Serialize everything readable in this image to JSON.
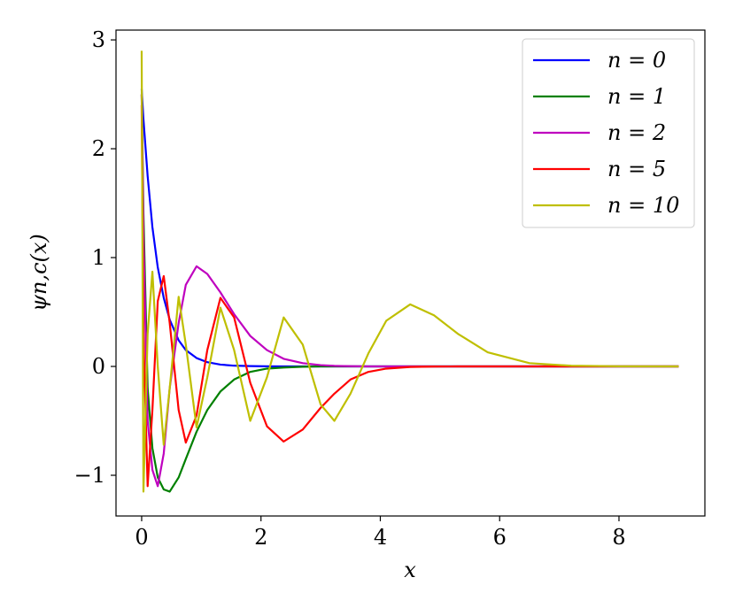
{
  "chart_data": {
    "type": "line",
    "xlabel": "x",
    "ylabel": "ψn,c(x)",
    "x": [
      0,
      0.03,
      0.1,
      0.18,
      0.27,
      0.37,
      0.47,
      0.62,
      0.74,
      0.92,
      1.1,
      1.32,
      1.55,
      1.82,
      2.1,
      2.38,
      2.7,
      3.0,
      3.23,
      3.5,
      3.8,
      4.1,
      4.5,
      4.9,
      5.3,
      5.8,
      6.5,
      7.2,
      8.0,
      9.0
    ],
    "series": [
      {
        "name": "n = 0",
        "color": "#0000ff",
        "values": [
          2.55,
          2.27,
          1.75,
          1.28,
          0.91,
          0.63,
          0.43,
          0.24,
          0.15,
          0.077,
          0.039,
          0.017,
          0.007,
          0.003,
          0.001,
          0,
          0,
          0,
          0,
          0,
          0,
          0,
          0,
          0,
          0,
          0,
          0,
          0,
          0,
          0
        ]
      },
      {
        "name": "n = 1",
        "color": "#008000",
        "values": [
          2.5,
          1.4,
          -0.2,
          -0.75,
          -1.02,
          -1.13,
          -1.15,
          -1.02,
          -0.85,
          -0.6,
          -0.4,
          -0.23,
          -0.12,
          -0.05,
          -0.02,
          -0.01,
          -0.003,
          0,
          0,
          0,
          0,
          0,
          0,
          0,
          0,
          0,
          0,
          0,
          0,
          0
        ]
      },
      {
        "name": "n = 2",
        "color": "#bf00bf",
        "values": [
          2.5,
          1.2,
          -0.5,
          -0.95,
          -1.1,
          -0.8,
          -0.2,
          0.4,
          0.75,
          0.92,
          0.85,
          0.68,
          0.48,
          0.28,
          0.15,
          0.07,
          0.03,
          0.012,
          0.005,
          0.002,
          0,
          0,
          0,
          0,
          0,
          0,
          0,
          0,
          0,
          0
        ]
      },
      {
        "name": "n = 5",
        "color": "#ff0000",
        "values": [
          2.4,
          0.3,
          -1.1,
          -0.4,
          0.6,
          0.83,
          0.4,
          -0.4,
          -0.7,
          -0.45,
          0.15,
          0.63,
          0.45,
          -0.15,
          -0.55,
          -0.69,
          -0.58,
          -0.38,
          -0.25,
          -0.12,
          -0.05,
          -0.02,
          -0.005,
          -0.001,
          0,
          0,
          0,
          0,
          0,
          0
        ]
      },
      {
        "name": "n = 10",
        "color": "#bfbf00",
        "values": [
          2.9,
          -1.15,
          0.3,
          0.87,
          0,
          -0.72,
          -0.2,
          0.64,
          0.2,
          -0.56,
          -0.1,
          0.54,
          0.15,
          -0.5,
          -0.1,
          0.45,
          0.2,
          -0.35,
          -0.5,
          -0.25,
          0.12,
          0.42,
          0.57,
          0.47,
          0.3,
          0.13,
          0.03,
          0.006,
          0.001,
          0
        ]
      }
    ],
    "xlim": [
      -0.43,
      9.44
    ],
    "ylim": [
      -1.374,
      3.09
    ],
    "xticks": [
      0,
      2,
      4,
      6,
      8
    ],
    "yticks": [
      {
        "value": -1,
        "label": "−1"
      },
      0,
      1,
      2,
      3
    ],
    "legend": "upper right"
  }
}
